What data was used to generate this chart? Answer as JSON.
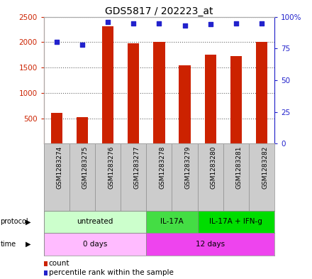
{
  "title": "GDS5817 / 202223_at",
  "samples": [
    "GSM1283274",
    "GSM1283275",
    "GSM1283276",
    "GSM1283277",
    "GSM1283278",
    "GSM1283279",
    "GSM1283280",
    "GSM1283281",
    "GSM1283282"
  ],
  "counts": [
    600,
    520,
    2310,
    1980,
    2000,
    1550,
    1750,
    1730,
    2000
  ],
  "percentiles": [
    80,
    78,
    96,
    95,
    95,
    93,
    94,
    95,
    95
  ],
  "ylim_left": [
    0,
    2500
  ],
  "ylim_right": [
    0,
    100
  ],
  "yticks_left": [
    500,
    1000,
    1500,
    2000,
    2500
  ],
  "yticks_right": [
    0,
    25,
    50,
    75,
    100
  ],
  "ytick_labels_left": [
    "500",
    "1000",
    "1500",
    "2000",
    "2500"
  ],
  "ytick_labels_right": [
    "0",
    "25",
    "50",
    "75",
    "100%"
  ],
  "bar_color": "#cc2200",
  "dot_color": "#2222cc",
  "grid_color": "#000000",
  "background_color": "#ffffff",
  "protocol_groups": [
    {
      "label": "untreated",
      "start": 0,
      "end": 4,
      "color": "#ccffcc"
    },
    {
      "label": "IL-17A",
      "start": 4,
      "end": 6,
      "color": "#44dd44"
    },
    {
      "label": "IL-17A + IFN-g",
      "start": 6,
      "end": 9,
      "color": "#00dd00"
    }
  ],
  "time_groups": [
    {
      "label": "0 days",
      "start": 0,
      "end": 4,
      "color": "#ffbbff"
    },
    {
      "label": "12 days",
      "start": 4,
      "end": 9,
      "color": "#ee44ee"
    }
  ],
  "sample_bg_color": "#cccccc",
  "left_axis_color": "#cc2200",
  "right_axis_color": "#2222cc",
  "title_fontsize": 10,
  "tick_fontsize": 7.5,
  "bar_width": 0.45
}
